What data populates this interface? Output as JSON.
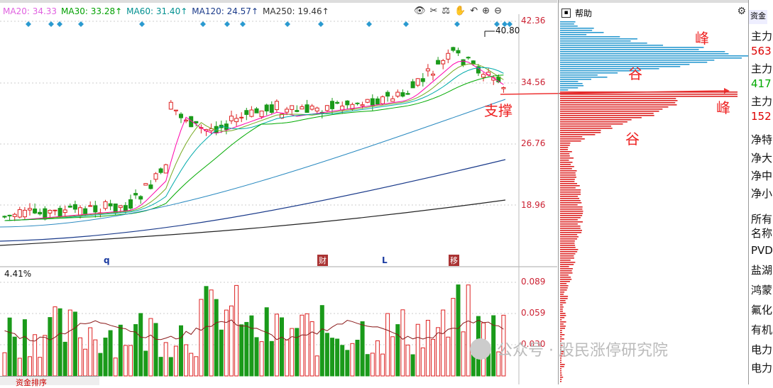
{
  "ma_bar": [
    {
      "label": "MA20: 34.33",
      "color": "#e060e0"
    },
    {
      "label": "MA30: 33.28↑",
      "color": "#00a000"
    },
    {
      "label": "MA60: 31.40↑",
      "color": "#009090"
    },
    {
      "label": "MA120: 24.57↑",
      "color": "#1a3a8a"
    },
    {
      "label": "MA250: 19.46↑",
      "color": "#333333"
    }
  ],
  "toolbar_icons": [
    "eye-icon",
    "scissors-icon",
    "scale-icon",
    "hand-icon",
    "undo-icon",
    "zoom-in-icon",
    "zoom-out-icon"
  ],
  "price_axis": [
    "42.36",
    "34.56",
    "26.76",
    "18.96"
  ],
  "high_label": "40.80",
  "event_markers": {
    "q": "q",
    "cai": "财",
    "l": "L",
    "yi": "移"
  },
  "volume": {
    "header": "4.41%",
    "axis": [
      "0.089",
      "0.059",
      "0.030"
    ]
  },
  "bottom_tab": "资金排序",
  "right_panel": {
    "help": "帮助",
    "annotations": {
      "peak1": "峰",
      "valley1": "谷",
      "peak2": "峰",
      "valley2": "谷"
    }
  },
  "support_label": "支撑",
  "far_panel": {
    "top": "资金",
    "rows": [
      {
        "text": "主力",
        "color": "#111"
      },
      {
        "text": "563",
        "color": "#d00"
      },
      {
        "text": "主力",
        "color": "#111"
      },
      {
        "text": "417",
        "color": "#0a0"
      },
      {
        "text": "主力",
        "color": "#111"
      },
      {
        "text": "152",
        "color": "#d00"
      },
      {
        "text": "净特",
        "color": "#111"
      },
      {
        "text": "净大",
        "color": "#111"
      },
      {
        "text": "净中",
        "color": "#111"
      },
      {
        "text": "净小",
        "color": "#111"
      },
      {
        "text": "所有",
        "color": "#111"
      },
      {
        "text": "名称",
        "color": "#111"
      },
      {
        "text": "PVD",
        "color": "#111"
      },
      {
        "text": "盐湖",
        "color": "#111"
      },
      {
        "text": "鸿蒙",
        "color": "#111"
      },
      {
        "text": "氟化",
        "color": "#111"
      },
      {
        "text": "有机",
        "color": "#111"
      },
      {
        "text": "电力",
        "color": "#111"
      },
      {
        "text": "电力",
        "color": "#111"
      }
    ]
  },
  "watermark": "公众号 · 股民涨停研究院"
}
